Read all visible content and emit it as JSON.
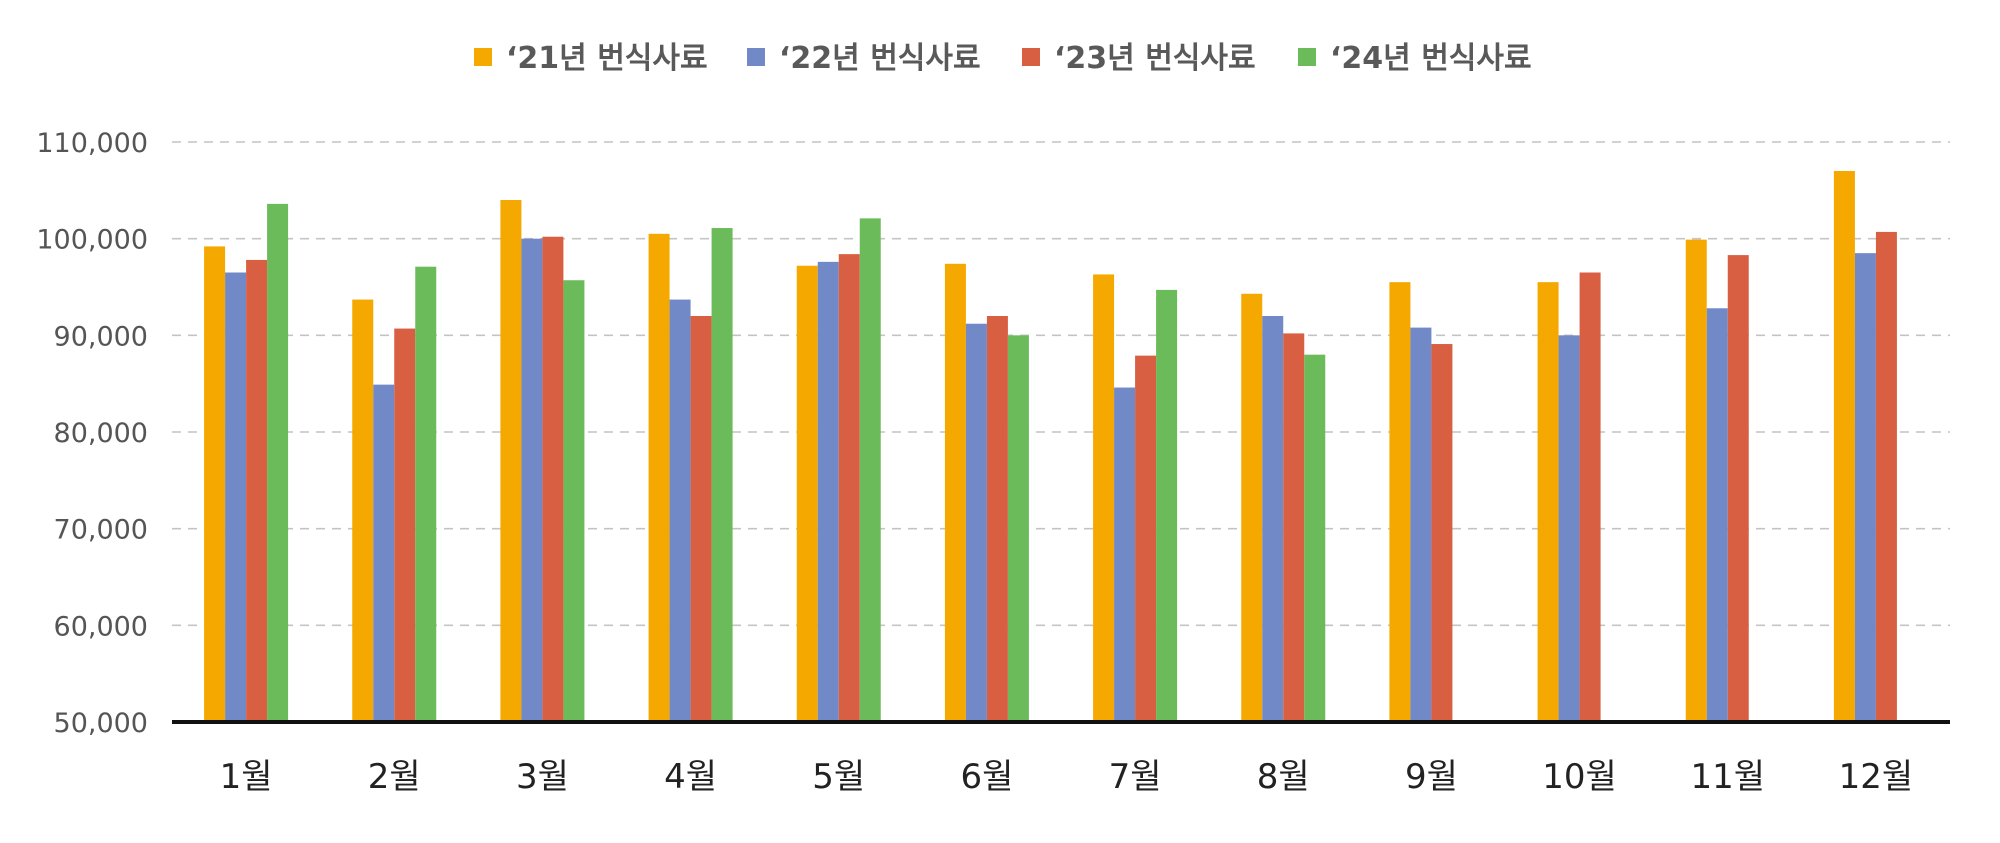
{
  "chart_data": {
    "type": "bar",
    "title": "",
    "xlabel": "",
    "ylabel": "",
    "ylim": [
      50000,
      110000
    ],
    "yticks": [
      50000,
      60000,
      70000,
      80000,
      90000,
      100000,
      110000
    ],
    "ytick_labels": [
      "50,000",
      "60,000",
      "70,000",
      "80,000",
      "90,000",
      "100,000",
      "110,000"
    ],
    "grid": true,
    "legend_position": "top-center",
    "categories": [
      "1월",
      "2월",
      "3월",
      "4월",
      "5월",
      "6월",
      "7월",
      "8월",
      "9월",
      "10월",
      "11월",
      "12월"
    ],
    "series": [
      {
        "name": "‘21년 번식사료",
        "color": "#F5A800",
        "values": [
          99200,
          93700,
          104000,
          100500,
          97200,
          97400,
          96300,
          94300,
          95500,
          95500,
          99900,
          107000
        ]
      },
      {
        "name": "‘22년 번식사료",
        "color": "#7289C8",
        "values": [
          96500,
          84900,
          100000,
          93700,
          97600,
          91200,
          84600,
          92000,
          90800,
          90000,
          92800,
          98500
        ]
      },
      {
        "name": "‘23년 번식사료",
        "color": "#D95F43",
        "values": [
          97800,
          90700,
          100200,
          92000,
          98400,
          92000,
          87900,
          90200,
          89100,
          96500,
          98300,
          100700
        ]
      },
      {
        "name": "‘24년 번식사료",
        "color": "#6CBB5A",
        "values": [
          103600,
          97100,
          95700,
          101100,
          102100,
          90000,
          94700,
          88000,
          null,
          null,
          null,
          null
        ]
      }
    ]
  }
}
